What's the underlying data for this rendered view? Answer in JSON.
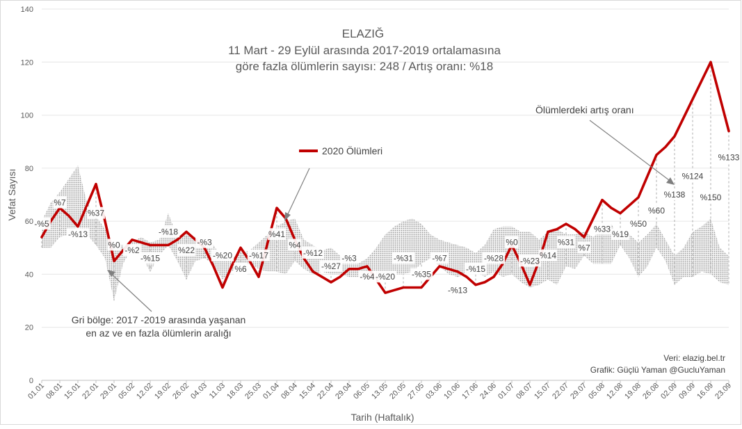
{
  "chart_data": {
    "type": "line",
    "title": "ELAZIĞ",
    "subtitle_lines": [
      "11 Mart - 29 Eylül arasında 2017-2019 ortalamasına",
      "göre fazla ölümlerin sayısı: 248 / Artış oranı: %18"
    ],
    "xlabel": "Tarih (Haftalık)",
    "ylabel": "Vefat Sayısı",
    "ylim": [
      0,
      140
    ],
    "yticks": [
      0,
      20,
      40,
      60,
      80,
      100,
      120,
      140
    ],
    "grid": true,
    "categories": [
      "01.01",
      "08.01",
      "15.01",
      "22.01",
      "29.01",
      "05.02",
      "12.02",
      "19.02",
      "26.02",
      "04.03",
      "11.03",
      "18.03",
      "25.03",
      "01.04",
      "08.04",
      "15.04",
      "22.04",
      "29.04",
      "06.05",
      "13.05",
      "20.05",
      "27.05",
      "03.06",
      "10.06",
      "17.06",
      "24.06",
      "01.07",
      "08.07",
      "15.07",
      "22.07",
      "29.07",
      "05.08",
      "12.08",
      "19.08",
      "26.08",
      "02.09",
      "09.09",
      "16.09",
      "23.09"
    ],
    "x": [
      "01.01",
      "04.01",
      "08.01",
      "11.01",
      "15.01",
      "18.01",
      "22.01",
      "25.01",
      "29.01",
      "01.02",
      "05.02",
      "08.02",
      "12.02",
      "15.02",
      "19.02",
      "22.02",
      "26.02",
      "29.02",
      "04.03",
      "07.03",
      "11.03",
      "14.03",
      "18.03",
      "21.03",
      "25.03",
      "28.03",
      "01.04",
      "04.04",
      "08.04",
      "11.04",
      "15.04",
      "18.04",
      "22.04",
      "25.04",
      "29.04",
      "02.05",
      "06.05",
      "09.05",
      "13.05",
      "16.05",
      "20.05",
      "23.05",
      "27.05",
      "30.05",
      "03.06",
      "06.06",
      "10.06",
      "13.06",
      "17.06",
      "20.06",
      "24.06",
      "27.06",
      "01.07",
      "04.07",
      "08.07",
      "11.07",
      "15.07",
      "18.07",
      "22.07",
      "25.07",
      "29.07",
      "01.08",
      "05.08",
      "08.08",
      "12.08",
      "15.08",
      "19.08",
      "22.08",
      "26.08",
      "29.08",
      "02.09",
      "05.09",
      "09.09",
      "12.09",
      "16.09",
      "19.09",
      "23.09"
    ],
    "series": [
      {
        "name": "2020 Ölümleri",
        "color": "#c00000",
        "values": [
          54,
          60,
          65,
          62,
          58,
          66,
          74,
          60,
          45,
          49,
          53,
          52,
          51,
          51,
          51,
          53,
          56,
          53,
          50,
          43,
          35,
          43,
          50,
          45,
          39,
          52,
          65,
          61,
          53,
          46,
          41,
          39,
          37,
          39,
          42,
          42,
          43,
          38,
          33,
          34,
          35,
          35,
          35,
          39,
          43,
          42,
          41,
          39,
          36,
          37,
          39,
          44,
          51,
          44,
          36,
          45,
          56,
          57,
          59,
          57,
          54,
          61,
          68,
          65,
          63,
          66,
          69,
          77,
          85,
          88,
          92,
          99,
          106,
          113,
          120,
          107,
          94
        ]
      }
    ],
    "range_band": {
      "name": "Gri bölge: 2017 -2019 arasında yaşanan en az ve en fazla ölümlerin aralığı",
      "color": "#bfbfbf",
      "min": [
        50,
        50,
        54,
        55,
        58,
        55,
        51,
        46,
        30,
        44,
        50,
        47,
        41,
        47,
        51,
        45,
        38,
        45,
        46,
        44,
        38,
        41,
        44,
        44,
        42,
        41,
        41,
        40,
        45,
        42,
        40,
        41,
        40,
        40,
        39,
        39,
        38,
        38,
        39,
        40,
        40,
        41,
        44,
        46,
        43,
        40,
        39,
        40,
        41,
        39,
        41,
        39,
        40,
        37,
        35,
        36,
        38,
        36,
        43,
        42,
        47,
        44,
        44,
        44,
        51,
        46,
        39,
        43,
        50,
        45,
        36,
        39,
        39,
        41,
        40,
        37,
        36
      ],
      "max": [
        60,
        67,
        71,
        76,
        81,
        67,
        62,
        57,
        51,
        51,
        52,
        54,
        52,
        53,
        63,
        54,
        55,
        54,
        52,
        51,
        46,
        46,
        48,
        49,
        52,
        55,
        58,
        60,
        61,
        53,
        51,
        49,
        50,
        47,
        46,
        44,
        46,
        50,
        55,
        58,
        60,
        61,
        59,
        55,
        53,
        52,
        51,
        50,
        48,
        51,
        57,
        58,
        58,
        56,
        56,
        53,
        56,
        57,
        55,
        55,
        56,
        54,
        57,
        59,
        53,
        55,
        52,
        55,
        59,
        53,
        47,
        50,
        56,
        58,
        61,
        50,
        47
      ]
    },
    "percent_labels": [
      {
        "x": "01.01",
        "y": 59,
        "text": "-%5"
      },
      {
        "x": "08.01",
        "y": 67,
        "text": "%7"
      },
      {
        "x": "15.01",
        "y": 55,
        "text": "-%13"
      },
      {
        "x": "22.01",
        "y": 63,
        "text": "%37"
      },
      {
        "x": "29.01",
        "y": 51,
        "text": "%0"
      },
      {
        "x": "05.02",
        "y": 49,
        "text": "-%2"
      },
      {
        "x": "12.02",
        "y": 46,
        "text": "-%15"
      },
      {
        "x": "19.02",
        "y": 56,
        "text": "-%18"
      },
      {
        "x": "26.02",
        "y": 49,
        "text": "%22"
      },
      {
        "x": "04.03",
        "y": 52,
        "text": "-%3"
      },
      {
        "x": "11.03",
        "y": 47,
        "text": "-%20"
      },
      {
        "x": "18.03",
        "y": 42,
        "text": "%6"
      },
      {
        "x": "25.03",
        "y": 47,
        "text": "-%17"
      },
      {
        "x": "01.04",
        "y": 55,
        "text": "%41"
      },
      {
        "x": "08.04",
        "y": 51,
        "text": "%4"
      },
      {
        "x": "15.04",
        "y": 48,
        "text": "-%12"
      },
      {
        "x": "22.04",
        "y": 43,
        "text": "-%27"
      },
      {
        "x": "29.04",
        "y": 46,
        "text": "-%3"
      },
      {
        "x": "06.05",
        "y": 39,
        "text": "-%4"
      },
      {
        "x": "13.05",
        "y": 39,
        "text": "-%20"
      },
      {
        "x": "20.05",
        "y": 46,
        "text": "-%31"
      },
      {
        "x": "27.05",
        "y": 40,
        "text": "-%35"
      },
      {
        "x": "03.06",
        "y": 46,
        "text": "-%7"
      },
      {
        "x": "10.06",
        "y": 34,
        "text": "-%13"
      },
      {
        "x": "17.06",
        "y": 42,
        "text": "-%15"
      },
      {
        "x": "24.06",
        "y": 46,
        "text": "-%28"
      },
      {
        "x": "01.07",
        "y": 52,
        "text": "%0"
      },
      {
        "x": "08.07",
        "y": 45,
        "text": "-%23"
      },
      {
        "x": "15.07",
        "y": 47,
        "text": "%14"
      },
      {
        "x": "22.07",
        "y": 52,
        "text": "%31"
      },
      {
        "x": "29.07",
        "y": 50,
        "text": "%7"
      },
      {
        "x": "05.08",
        "y": 57,
        "text": "%33"
      },
      {
        "x": "12.08",
        "y": 55,
        "text": "%19"
      },
      {
        "x": "19.08",
        "y": 59,
        "text": "%50"
      },
      {
        "x": "26.08",
        "y": 64,
        "text": "%60"
      },
      {
        "x": "02.09",
        "y": 70,
        "text": "%138"
      },
      {
        "x": "09.09",
        "y": 77,
        "text": "%124"
      },
      {
        "x": "16.09",
        "y": 69,
        "text": "%150"
      },
      {
        "x": "23.09",
        "y": 84,
        "text": "%133"
      }
    ],
    "annotations": {
      "series_label": "2020 Ölümleri",
      "increase_label": "Ölümlerdeki artış oranı",
      "band_label_line1": "Gri bölge: 2017 -2019 arasında yaşanan",
      "band_label_line2": "en az ve en fazla ölümlerin aralığı",
      "source": "Veri:  elazig.bel.tr",
      "credit": "Grafik:  Güçlü Yaman  @GucluYaman"
    }
  }
}
